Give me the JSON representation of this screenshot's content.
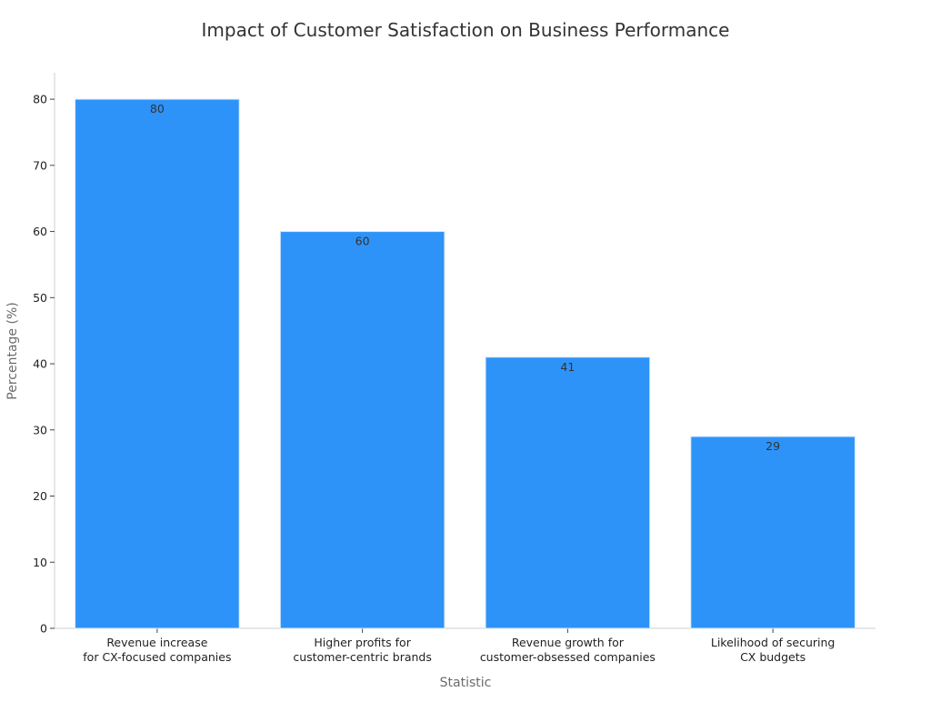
{
  "chart_data": {
    "type": "bar",
    "title": "Impact of Customer Satisfaction on Business Performance",
    "xlabel": "Statistic",
    "ylabel": "Percentage (%)",
    "categories": [
      [
        "Revenue increase",
        "for CX-focused companies"
      ],
      [
        "Higher profits for",
        "customer-centric brands"
      ],
      [
        "Revenue growth for",
        "customer-obsessed companies"
      ],
      [
        "Likelihood of securing",
        "CX budgets"
      ]
    ],
    "values": [
      80,
      60,
      41,
      29
    ],
    "ylim": [
      0,
      84
    ],
    "yticks": [
      0,
      10,
      20,
      30,
      40,
      50,
      60,
      70,
      80
    ],
    "bar_color": "#2e93f8",
    "grid": false,
    "legend": "none"
  }
}
